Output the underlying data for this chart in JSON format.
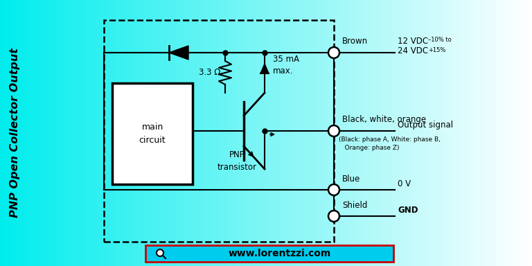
{
  "title": "PNP Open Collector Output",
  "label_brown": "Brown",
  "label_bwo": "Black, white, orange",
  "label_output": "Output signal",
  "label_phases": "(Black: phase A, White: phase B,\n   Orange: phase Z)",
  "label_blue": "Blue",
  "label_shield": "Shield",
  "label_12vdc": "12 VDC ",
  "label_12vdc_sup": "–10% to",
  "label_24vdc": "24 VDC ",
  "label_24vdc_sup": "+15%",
  "label_0v": "0 V",
  "label_gnd": "GND",
  "label_resistor": "3.3 Ω",
  "label_current": "35 mA\nmax.",
  "label_pnp": "PNP\ntransistor",
  "label_main": "main\ncircuit",
  "website": "www.lorentzzi.com",
  "website_bar_color": "#00ccee",
  "website_bar_edge": "#cc0000",
  "bg_teal": [
    0.0,
    0.93,
    0.93
  ],
  "bg_white": [
    1.0,
    1.0,
    1.0
  ]
}
